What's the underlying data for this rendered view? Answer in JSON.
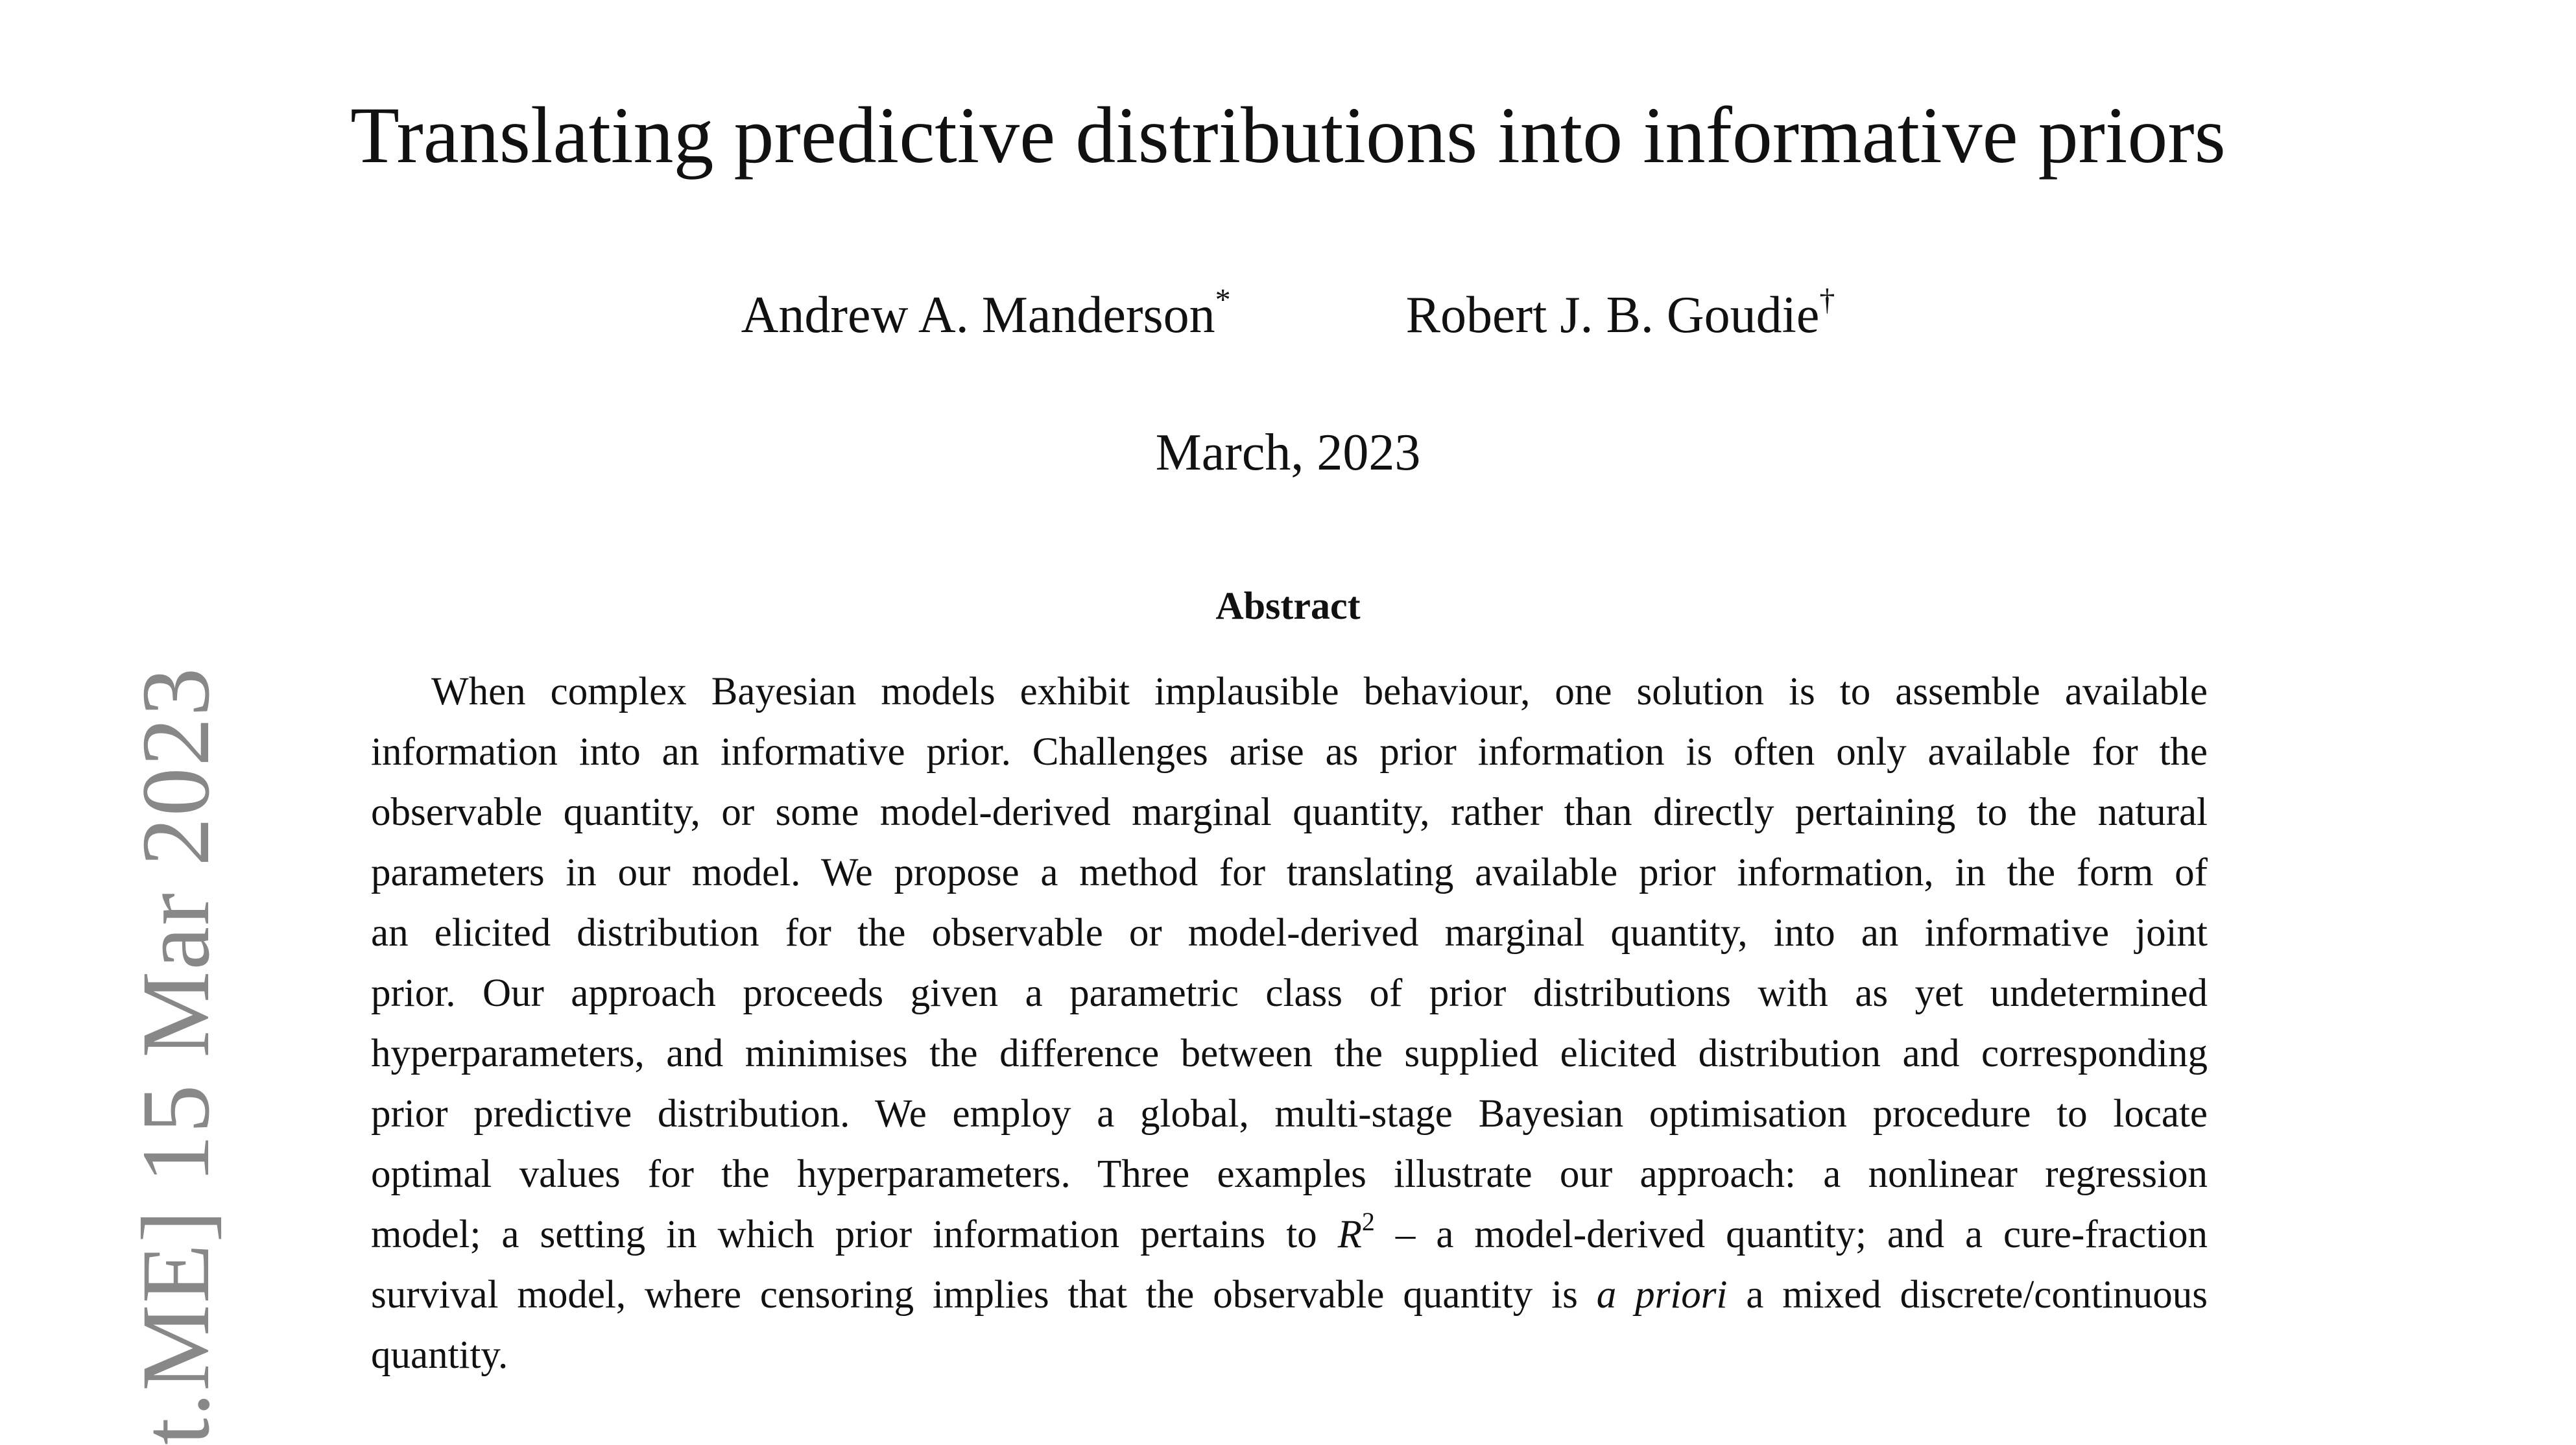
{
  "side_stamp": "t.ME]  15 Mar 2023",
  "title": "Translating predictive distributions into informative priors",
  "authors": [
    {
      "name": "Andrew A. Manderson",
      "mark": "*"
    },
    {
      "name": "Robert J. B. Goudie",
      "mark": "†"
    }
  ],
  "date": "March, 2023",
  "abstract": {
    "heading": "Abstract",
    "lines": [
      "When complex Bayesian models exhibit implausible behaviour, one solution is to assemble available",
      "information into an informative prior. Challenges arise as prior information is often only available for the",
      "observable quantity, or some model-derived marginal quantity, rather than directly pertaining to the natural",
      "parameters in our model. We propose a method for translating available prior information, in the form of",
      "an elicited distribution for the observable or model-derived marginal quantity, into an informative joint",
      "prior. Our approach proceeds given a parametric class of prior distributions with as yet undetermined",
      "hyperparameters, and minimises the difference between the supplied elicited distribution and corresponding",
      "prior predictive distribution. We employ a global, multi-stage Bayesian optimisation procedure to locate",
      "optimal values for the hyperparameters. Three examples illustrate our approach: a nonlinear regression"
    ],
    "line10": {
      "before": "model; a setting in which prior information pertains to ",
      "math_symbol": "R",
      "math_exponent": "2",
      "after": " – a model-derived quantity; and a cure-fraction"
    },
    "line11": {
      "before": "survival model, where censoring implies that the observable quantity is ",
      "emphasis": "a priori",
      "after": " a mixed discrete/continuous"
    },
    "last_line": "quantity."
  }
}
